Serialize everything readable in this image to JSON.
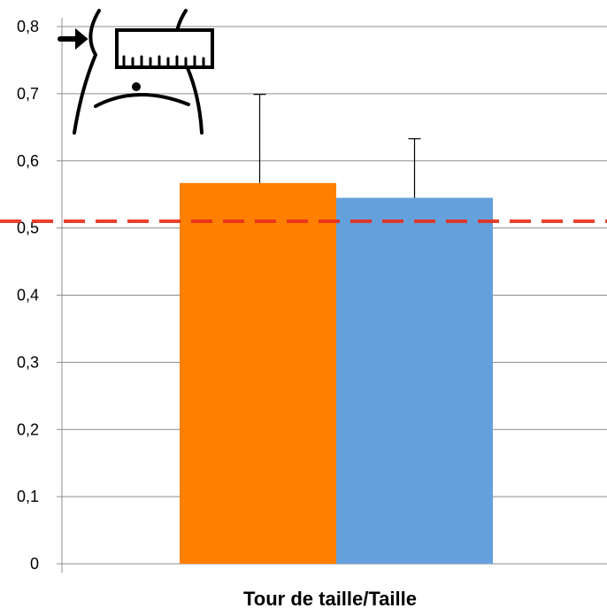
{
  "chart_data": {
    "type": "bar",
    "categories": [
      "Tour de taille/Taille"
    ],
    "xlabel": "Tour de taille/Taille",
    "ylim": [
      0,
      0.8
    ],
    "yticks": [
      0,
      0.1,
      0.2,
      0.3,
      0.4,
      0.5,
      0.6,
      0.7,
      0.8
    ],
    "ytick_labels": [
      "0",
      "0,1",
      "0,2",
      "0,3",
      "0,4",
      "0,5",
      "0,6",
      "0,7",
      "0,8"
    ],
    "grid": true,
    "series": [
      {
        "values": [
          0.567
        ],
        "error": [
          0.132
        ],
        "color": "#ff7f00"
      },
      {
        "values": [
          0.545
        ],
        "error": [
          0.088
        ],
        "color": "#64a0dc"
      }
    ],
    "reference_line": {
      "value": 0.51,
      "color": "#e8301e",
      "style": "dashed"
    },
    "icon": "waist-measurement-icon"
  }
}
